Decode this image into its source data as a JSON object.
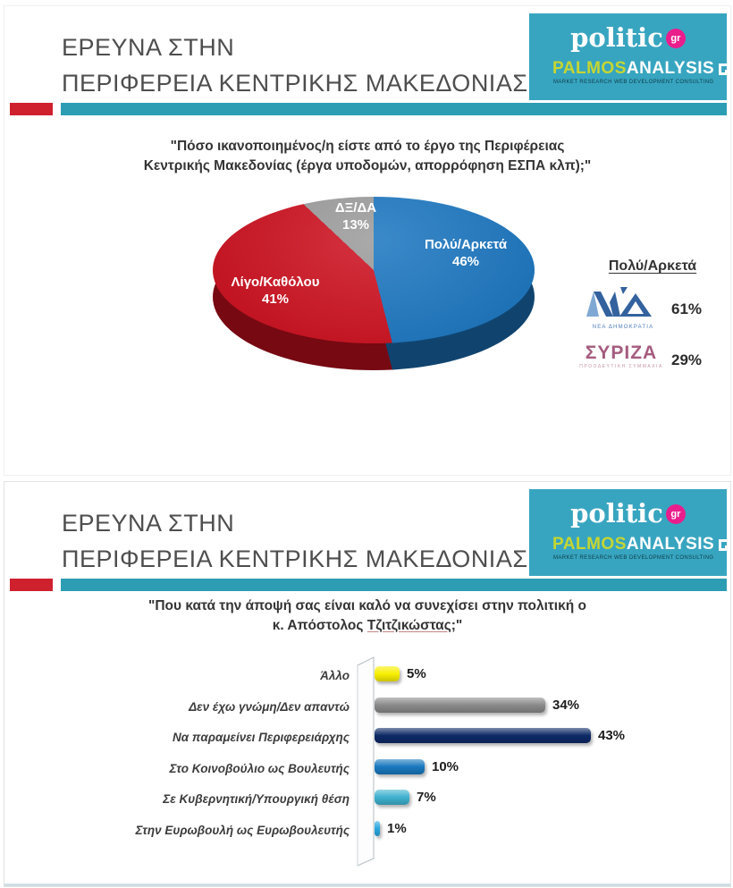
{
  "header": {
    "title_line1": "ΕΡΕΥΝΑ ΣΤΗΝ",
    "title_line2": "ΠΕΡΙΦΕΡΕΙΑ ΚΕΝΤΡΙΚΗΣ ΜΑΚΕΔΟΝΙΑΣ",
    "brand": {
      "politic": "politic",
      "politic_badge": "gr",
      "palmos": "PALMOS",
      "analysis": "ANALYSIS",
      "tagline": "MARKET RESEARCH  WEB DEVELOPMENT  CONSULTING",
      "bg_color": "#38a5c0",
      "badge_color": "#ea1d8d",
      "palmos_color": "#c6d631"
    },
    "divider_colors": {
      "red": "#cf202e",
      "teal": "#2d9db4"
    }
  },
  "slide1": {
    "question_line1": "\"Πόσο ικανοποιημένος/η είστε από το έργο της Περιφέρειας",
    "question_line2": "Κεντρικής Μακεδονίας (έργα υποδομών, απορρόφηση ΕΣΠΑ κλπ);\"",
    "legend": {
      "header": "Πολύ/Αρκετά",
      "parties": [
        {
          "logo": "ΝΔ",
          "caption": "ΝΕΑ ΔΗΜΟΚΡΑΤΙΑ",
          "value": "61%",
          "color": "#33629e"
        },
        {
          "logo": "ΣΥΡΙΖΑ",
          "caption": "ΠΡΟΟΔΕΥΤΙΚΗ ΣΥΜΜΑΧΙΑ",
          "value": "29%",
          "color": "#a55c7e"
        }
      ]
    }
  },
  "slide2": {
    "question_line1": "\"Που κατά την άποψή σας είναι καλό να συνεχίσει στην πολιτική ο",
    "question_line2_parts": {
      "pre": "κ. Απόστολος ",
      "name": "Τζιτζικώστας",
      "post": ";\""
    }
  },
  "chart_data": [
    {
      "type": "pie",
      "style": "3d",
      "title": "Πόσο ικανοποιημένος/η είστε από το έργο της Περιφέρειας Κεντρικής Μακεδονίας (έργα υποδομών, απορρόφηση ΕΣΠΑ κλπ);",
      "labels": [
        "Πολύ/Αρκετά",
        "Λίγο/Καθόλου",
        "ΔΞ/ΔΑ"
      ],
      "values": [
        46,
        41,
        13
      ],
      "display_values": [
        "46%",
        "41%",
        "13%"
      ],
      "colors": [
        "#1b76c0",
        "#cd101f",
        "#9b9b9b"
      ],
      "start_angle_deg": 0,
      "clockwise": true,
      "breakdown_header": "Πολύ/Αρκετά",
      "party_breakdown": [
        {
          "party": "ΝΕΑ ΔΗΜΟΚΡΑΤΙΑ",
          "value": 61,
          "display": "61%"
        },
        {
          "party": "ΣΥΡΙΖΑ",
          "value": 29,
          "display": "29%"
        }
      ]
    },
    {
      "type": "bar",
      "orientation": "horizontal",
      "title": "Που κατά την άποψή σας είναι καλό να συνεχίσει στην πολιτική ο κ. Απόστολος Τζιτζικώστας;",
      "categories": [
        "Άλλο",
        "Δεν έχω γνώμη/Δεν απαντώ",
        "Να παραμείνει Περιφερειάρχης",
        "Στο Κοινοβούλιο ως Βουλευτής",
        "Σε Κυβερνητική/Υπουργική θέση",
        "Στην Ευρωβουλή ως Ευρωβουλευτής"
      ],
      "values": [
        5,
        34,
        43,
        10,
        7,
        1
      ],
      "display_values": [
        "5%",
        "34%",
        "43%",
        "10%",
        "7%",
        "1%"
      ],
      "colors": [
        "#f8ef00",
        "#8a8a8a",
        "#0d2a66",
        "#1878be",
        "#3eb1ce",
        "#29a8e0"
      ],
      "xlim": [
        0,
        45
      ],
      "grid": false,
      "value_labels": "outside-end"
    }
  ]
}
